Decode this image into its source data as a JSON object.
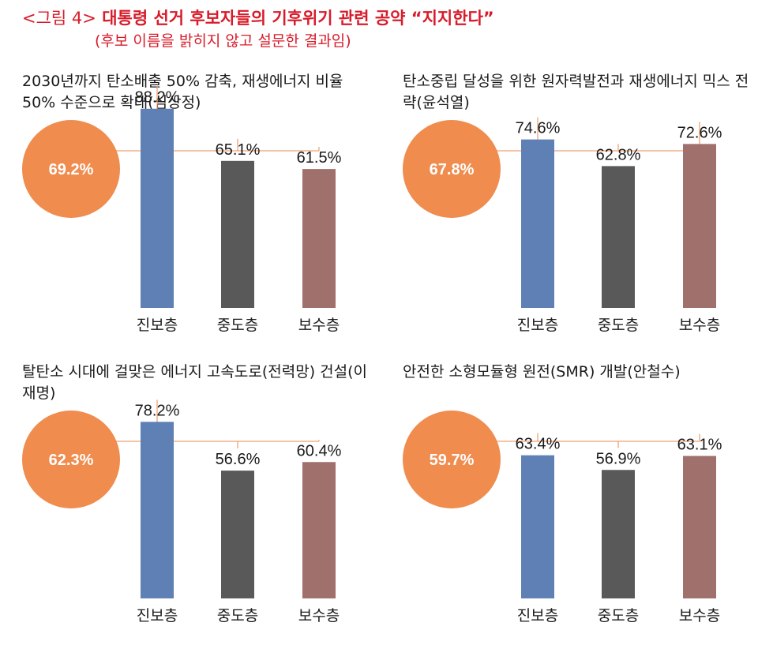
{
  "header": {
    "figure_label": "<그림 4>",
    "title": "대통령 선거 후보자들의 기후위기 관련 공약 “지지한다”",
    "subtitle": "(후보 이름을 밝히지 않고 설문한 결과임)"
  },
  "colors": {
    "circle": "#ef8c4e",
    "line": "#f0a070",
    "progressive": "#5f80b5",
    "moderate": "#595959",
    "conservative": "#a0706c"
  },
  "chart_data": [
    {
      "type": "bar",
      "title": "2030년까지 탄소배출 50% 감축, 재생에너지 비율 50% 수준으로 확대(심상정)",
      "overall": "69.2%",
      "categories": [
        "진보층",
        "중도층",
        "보수층"
      ],
      "values": [
        88.2,
        65.1,
        61.5
      ],
      "value_labels": [
        "88.2%",
        "65.1%",
        "61.5%"
      ]
    },
    {
      "type": "bar",
      "title": "탄소중립 달성을 위한 원자력발전과 재생에너지 믹스 전략(윤석열)",
      "overall": "67.8%",
      "categories": [
        "진보층",
        "중도층",
        "보수층"
      ],
      "values": [
        74.6,
        62.8,
        72.6
      ],
      "value_labels": [
        "74.6%",
        "62.8%",
        "72.6%"
      ]
    },
    {
      "type": "bar",
      "title": "탈탄소 시대에 걸맞은 에너지 고속도로(전력망) 건설(이재명)",
      "overall": "62.3%",
      "categories": [
        "진보층",
        "중도층",
        "보수층"
      ],
      "values": [
        78.2,
        56.6,
        60.4
      ],
      "value_labels": [
        "78.2%",
        "56.6%",
        "60.4%"
      ]
    },
    {
      "type": "bar",
      "title": "안전한 소형모듈형 원전(SMR) 개발(안철수)",
      "overall": "59.7%",
      "categories": [
        "진보층",
        "중도층",
        "보수층"
      ],
      "values": [
        63.4,
        56.9,
        63.1
      ],
      "value_labels": [
        "63.4%",
        "56.9%",
        "63.1%"
      ]
    }
  ]
}
